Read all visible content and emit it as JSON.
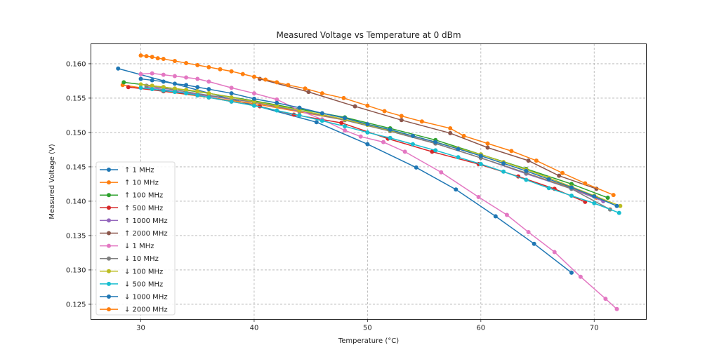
{
  "chart_data": {
    "type": "line",
    "title": "Measured Voltage vs Temperature at 0 dBm",
    "xlabel": "Temperature (°C)",
    "ylabel": "Measured Voltage (V)",
    "xlim": [
      25.6,
      74.6
    ],
    "ylim": [
      0.1228,
      0.1629
    ],
    "xticks": [
      30,
      40,
      50,
      60,
      70
    ],
    "xtick_labels": [
      "30",
      "40",
      "50",
      "60",
      "70"
    ],
    "yticks": [
      0.125,
      0.13,
      0.135,
      0.14,
      0.145,
      0.15,
      0.155,
      0.16
    ],
    "ytick_labels": [
      "0.125",
      "0.130",
      "0.135",
      "0.140",
      "0.145",
      "0.150",
      "0.155",
      "0.160"
    ],
    "grid": true,
    "legend_position": "lower-left",
    "series": [
      {
        "name": "↑ 1 MHz",
        "color": "#1f77b4",
        "x": [
          28.0,
          45.5,
          50.0,
          54.3,
          57.8,
          61.3,
          64.7,
          68.0
        ],
        "y": [
          0.1593,
          0.1515,
          0.1483,
          0.1449,
          0.1417,
          0.1378,
          0.1338,
          0.1296
        ]
      },
      {
        "name": "↑ 10 MHz",
        "color": "#ff7f0e",
        "x": [
          28.4,
          32.0,
          36.0,
          40.0,
          44.0,
          48.0,
          52.0,
          56.0,
          60.0,
          64.0,
          68.0,
          70.2
        ],
        "y": [
          0.1569,
          0.156,
          0.1551,
          0.1542,
          0.153,
          0.1518,
          0.1502,
          0.1484,
          0.1463,
          0.1441,
          0.1419,
          0.1405
        ]
      },
      {
        "name": "↑ 100 MHz",
        "color": "#2ca02c",
        "x": [
          28.5,
          32.0,
          36.0,
          40.0,
          44.0,
          48.0,
          52.0,
          56.0,
          60.0,
          64.0,
          68.0,
          71.2
        ],
        "y": [
          0.1573,
          0.1566,
          0.1557,
          0.1546,
          0.1534,
          0.1522,
          0.1506,
          0.1489,
          0.1468,
          0.1447,
          0.1425,
          0.1405
        ]
      },
      {
        "name": "↑ 500 MHz",
        "color": "#d62728",
        "x": [
          28.9,
          32.0,
          35.0,
          38.0,
          40.5,
          43.5,
          47.7,
          51.8,
          55.7,
          59.8,
          63.3,
          66.5,
          69.2
        ],
        "y": [
          0.1566,
          0.156,
          0.1554,
          0.1545,
          0.1538,
          0.1526,
          0.1514,
          0.1491,
          0.1472,
          0.1454,
          0.1436,
          0.1418,
          0.1399
        ]
      },
      {
        "name": "↑ 1000 MHz",
        "color": "#9467bd",
        "x": [
          30.5,
          33.0,
          36.0,
          40.0,
          44.0,
          48.0,
          52.0,
          56.0,
          60.0,
          64.0,
          68.0,
          70.8
        ],
        "y": [
          0.1566,
          0.156,
          0.1553,
          0.1544,
          0.1531,
          0.1518,
          0.1502,
          0.1484,
          0.1463,
          0.144,
          0.1418,
          0.14
        ]
      },
      {
        "name": "↑ 2000 MHz",
        "color": "#8c564b",
        "x": [
          40.5,
          44.8,
          48.9,
          53.0,
          57.3,
          60.6,
          64.2,
          66.9,
          70.2
        ],
        "y": [
          0.1578,
          0.1559,
          0.1538,
          0.1518,
          0.1499,
          0.1478,
          0.1459,
          0.1437,
          0.1418
        ]
      },
      {
        "name": "↓ 1 MHz",
        "color": "#e377c2",
        "x": [
          30.0,
          31.0,
          32.0,
          33.0,
          34.0,
          35.0,
          36.0,
          38.0,
          40.0,
          42.0,
          44.0,
          46.0,
          48.0,
          49.4,
          51.4,
          53.3,
          56.5,
          59.8,
          62.3,
          64.2,
          66.5,
          68.8,
          71.0,
          72.0
        ],
        "y": [
          0.1585,
          0.1586,
          0.1584,
          0.1582,
          0.158,
          0.1578,
          0.1574,
          0.1565,
          0.1557,
          0.1548,
          0.1532,
          0.1519,
          0.1503,
          0.1494,
          0.1486,
          0.1472,
          0.1442,
          0.1406,
          0.138,
          0.1355,
          0.1326,
          0.129,
          0.1258,
          0.1243
        ]
      },
      {
        "name": "↓ 10 MHz",
        "color": "#7f7f7f",
        "x": [
          30.5,
          33.0,
          36.0,
          40.0,
          44.0,
          48.0,
          52.0,
          56.0,
          60.0,
          64.0,
          68.0,
          71.4
        ],
        "y": [
          0.1568,
          0.1562,
          0.1554,
          0.1544,
          0.1532,
          0.1518,
          0.1502,
          0.1484,
          0.1463,
          0.1441,
          0.1418,
          0.1388
        ]
      },
      {
        "name": "↓ 100 MHz",
        "color": "#bcbd22",
        "x": [
          30.0,
          31.0,
          32.0,
          33.0,
          34.0,
          35.0,
          36.0,
          38.0,
          40.0,
          42.0,
          44.0,
          46.0,
          48.0,
          50.0,
          52.0,
          54.0,
          56.0,
          58.0,
          60.0,
          62.0,
          64.0,
          66.0,
          68.0,
          70.0,
          72.3
        ],
        "y": [
          0.157,
          0.1568,
          0.1566,
          0.1564,
          0.1562,
          0.156,
          0.1557,
          0.1551,
          0.1545,
          0.1539,
          0.1532,
          0.1526,
          0.1519,
          0.1511,
          0.1503,
          0.1495,
          0.1486,
          0.1477,
          0.1468,
          0.1457,
          0.1446,
          0.1434,
          0.1421,
          0.1408,
          0.1393
        ]
      },
      {
        "name": "↓ 500 MHz",
        "color": "#17becf",
        "x": [
          30.0,
          31.0,
          32.0,
          33.0,
          34.0,
          35.0,
          36.0,
          38.0,
          40.0,
          42.0,
          44.0,
          46.0,
          48.0,
          50.0,
          52.0,
          54.0,
          56.0,
          58.0,
          60.0,
          62.0,
          64.0,
          66.0,
          68.0,
          70.0,
          72.2
        ],
        "y": [
          0.1565,
          0.1563,
          0.1561,
          0.1559,
          0.1557,
          0.1554,
          0.1551,
          0.1545,
          0.1539,
          0.1532,
          0.1525,
          0.1517,
          0.1509,
          0.15,
          0.1492,
          0.1483,
          0.1474,
          0.1464,
          0.1454,
          0.1443,
          0.1431,
          0.1419,
          0.1408,
          0.1397,
          0.1383
        ]
      },
      {
        "name": "↓ 1000 MHz",
        "color": "#1f77b4",
        "x": [
          30.0,
          31.0,
          32.0,
          33.0,
          34.0,
          35.0,
          36.0,
          38.0,
          40.0,
          42.0,
          44.0,
          46.0,
          48.0,
          50.0,
          52.0,
          54.0,
          56.0,
          58.0,
          60.0,
          62.0,
          64.0,
          66.0,
          68.0,
          70.0,
          72.0
        ],
        "y": [
          0.1578,
          0.1576,
          0.1574,
          0.1571,
          0.1569,
          0.1566,
          0.1563,
          0.1557,
          0.1549,
          0.1543,
          0.1536,
          0.1528,
          0.1521,
          0.1512,
          0.1504,
          0.1495,
          0.1486,
          0.1476,
          0.1466,
          0.1455,
          0.1444,
          0.1432,
          0.142,
          0.1407,
          0.1393
        ]
      },
      {
        "name": "↓ 2000 MHz",
        "color": "#ff7f0e",
        "x": [
          30.0,
          30.5,
          31.0,
          31.5,
          32.0,
          33.0,
          34.0,
          35.0,
          36.0,
          37.0,
          38.0,
          39.0,
          40.0,
          41.0,
          42.0,
          43.0,
          44.5,
          46.0,
          47.9,
          50.0,
          51.5,
          53.0,
          54.8,
          57.3,
          58.5,
          60.6,
          62.7,
          64.9,
          67.2,
          69.2,
          71.7
        ],
        "y": [
          0.1612,
          0.1611,
          0.161,
          0.1608,
          0.1607,
          0.1604,
          0.1601,
          0.1598,
          0.1595,
          0.1592,
          0.1589,
          0.1585,
          0.1581,
          0.1577,
          0.1573,
          0.1569,
          0.1564,
          0.1557,
          0.155,
          0.1539,
          0.1531,
          0.1524,
          0.1516,
          0.1506,
          0.1495,
          0.1484,
          0.1473,
          0.1459,
          0.1441,
          0.1426,
          0.1409
        ]
      }
    ]
  }
}
